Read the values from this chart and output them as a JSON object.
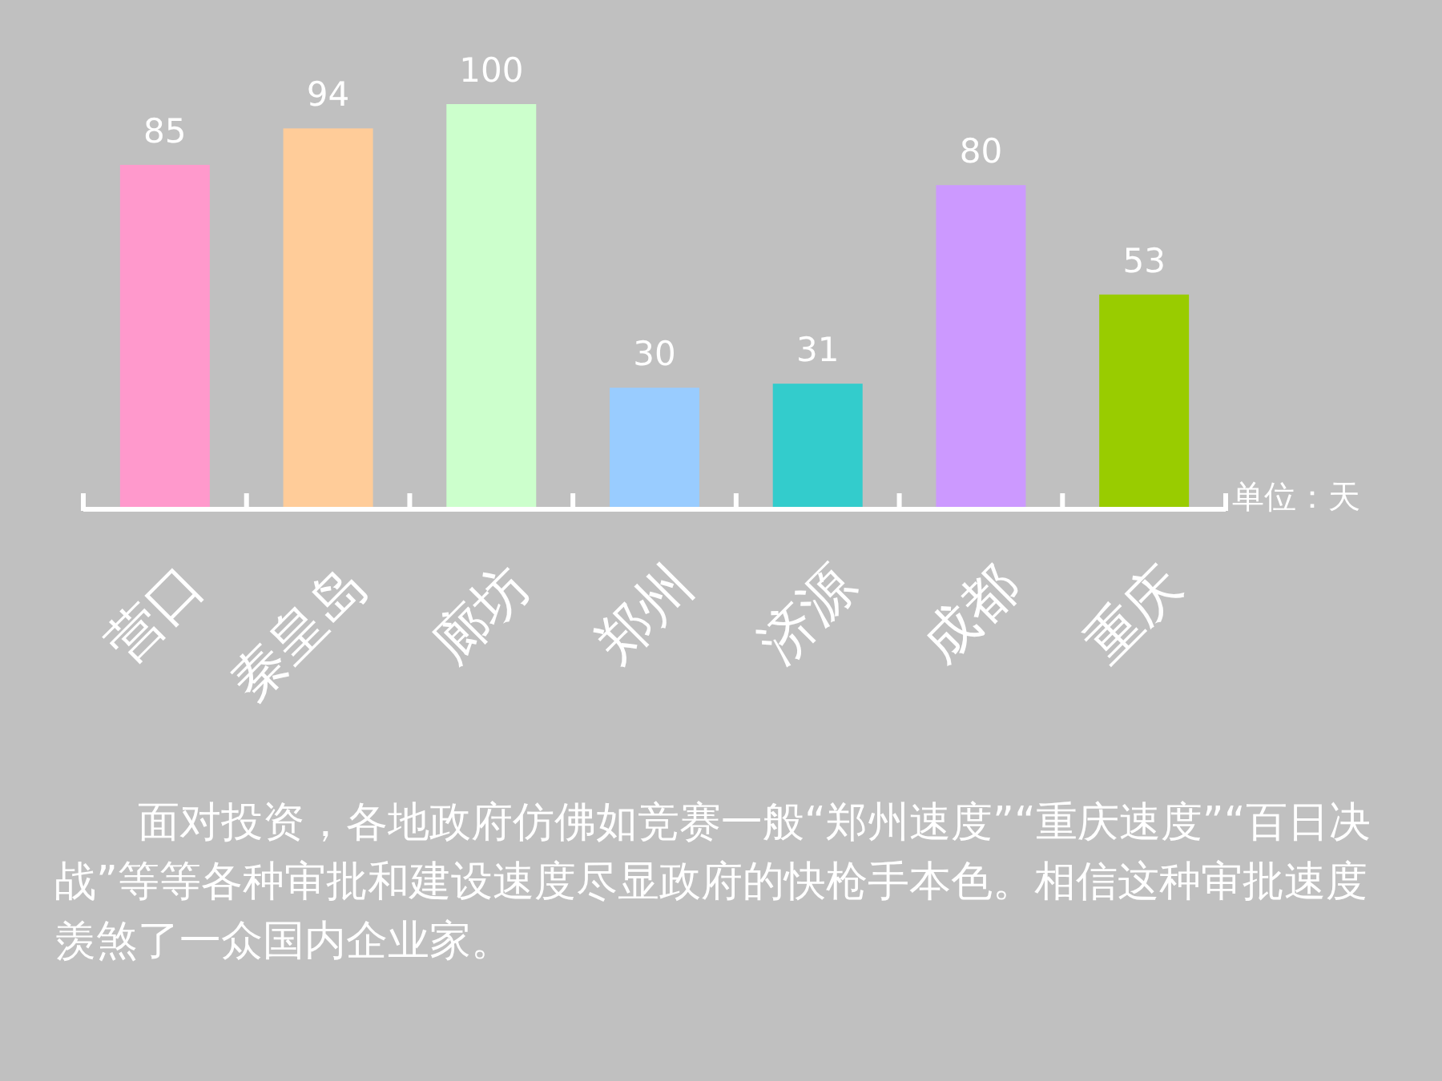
{
  "chart_data": {
    "type": "bar",
    "categories": [
      "营口",
      "秦皇岛",
      "廊坊",
      "郑州",
      "济源",
      "成都",
      "重庆"
    ],
    "values": [
      85,
      94,
      100,
      30,
      31,
      80,
      53
    ],
    "colors": [
      "#ff99cc",
      "#ffcc99",
      "#ccffcc",
      "#99ccff",
      "#33cccc",
      "#cc99ff",
      "#99cc00"
    ],
    "data_labels": true,
    "ylabel": "单位：天",
    "annotations": [
      "面对投资，各地政府仿佛如竞赛一般“郑州速度”“重庆速度”“百日决战”等等各种审批和建设速度尽显政府的快枪手本色。相信这种审批速度羡煞了一众国内企业家。"
    ]
  }
}
